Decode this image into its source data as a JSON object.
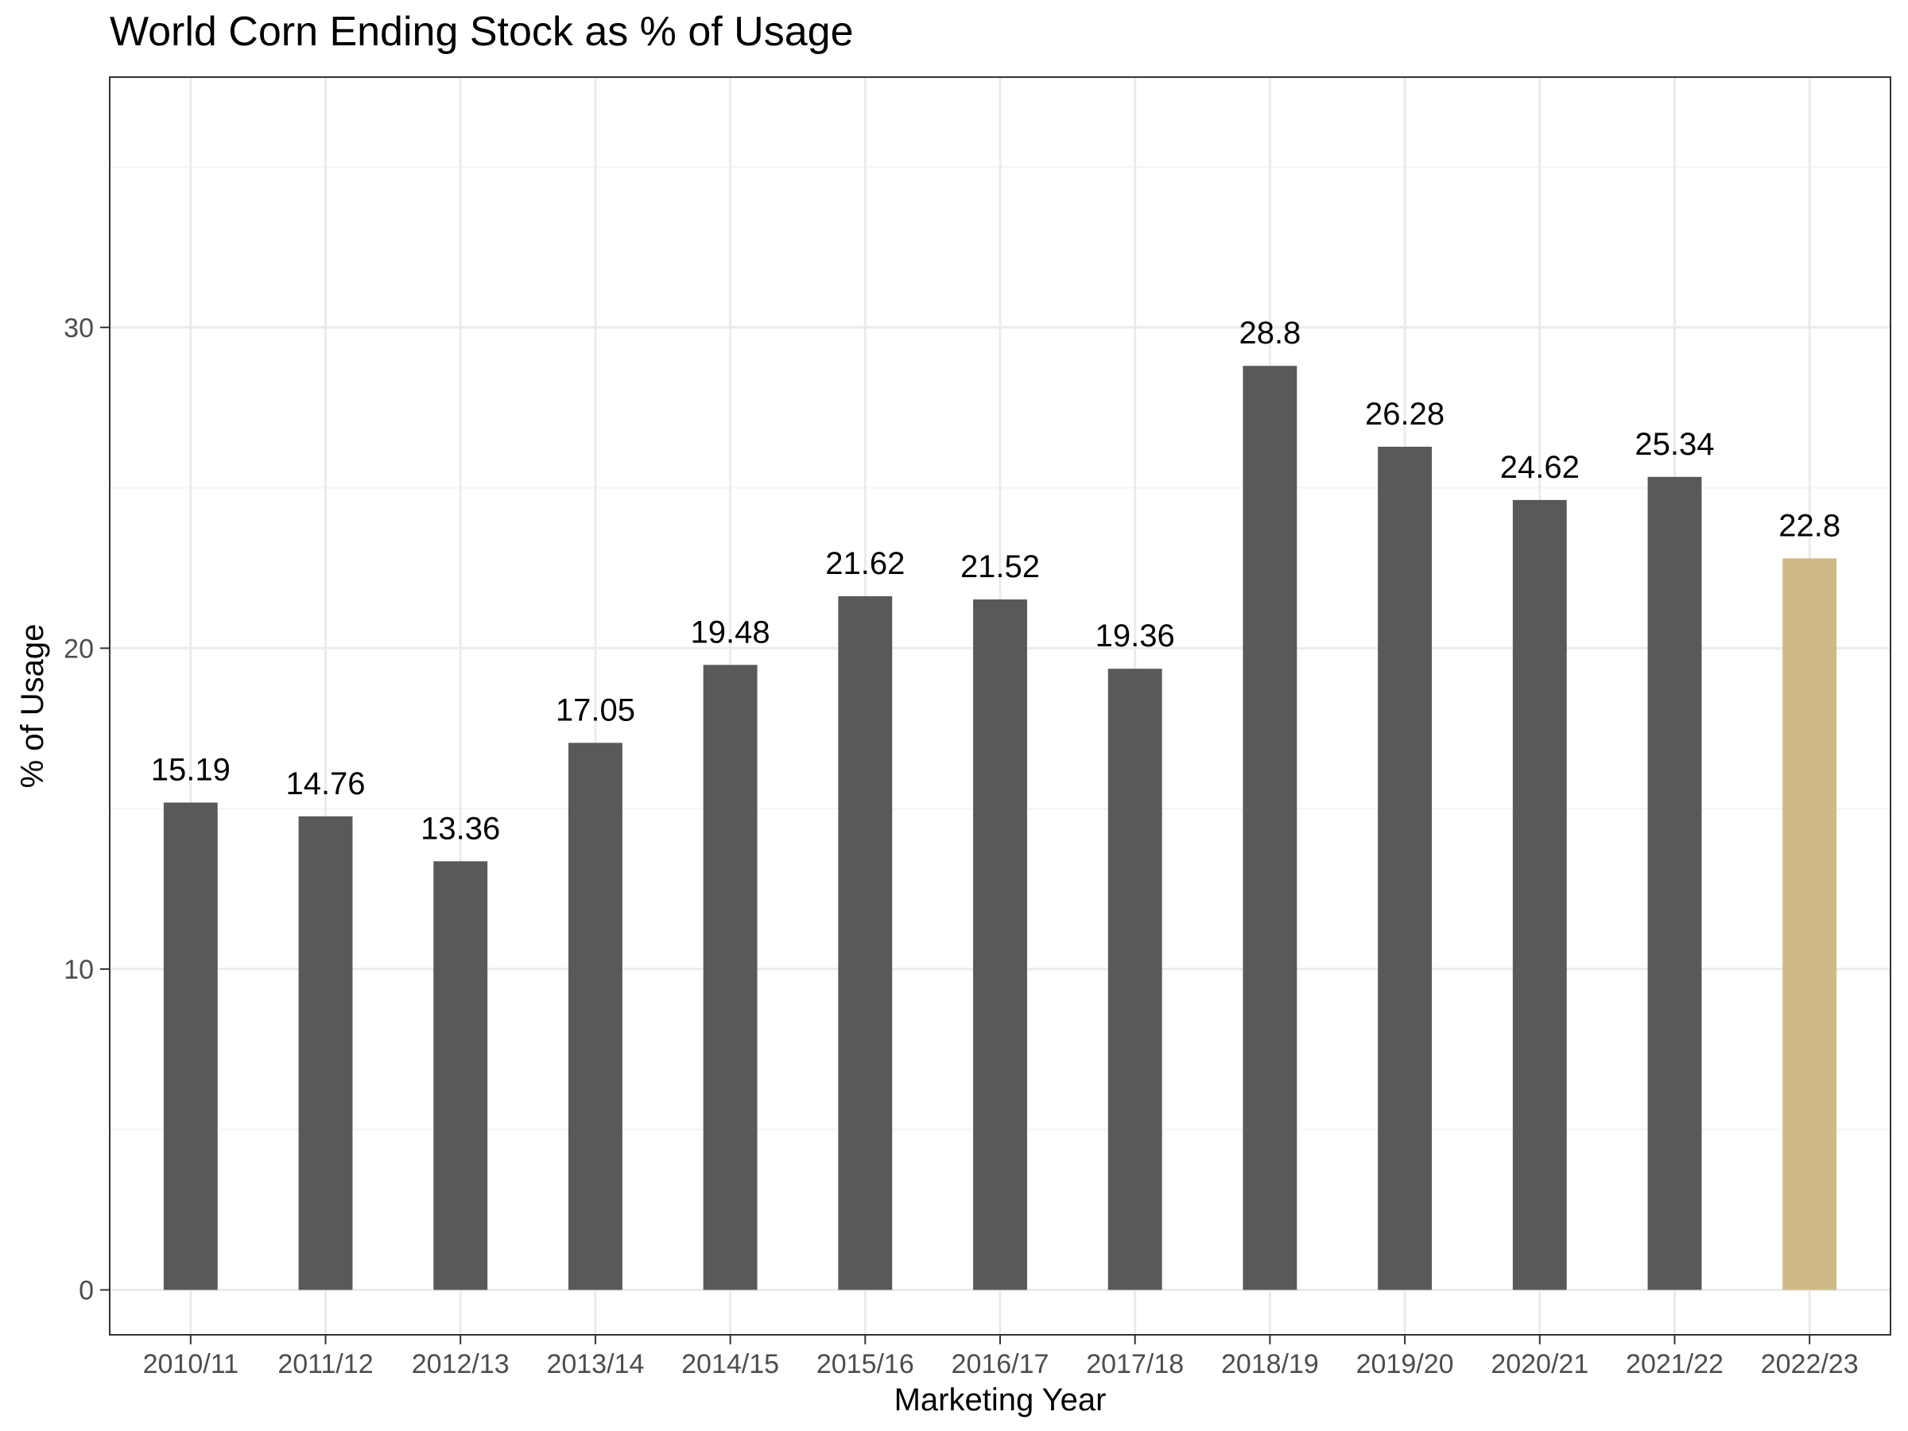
{
  "chart_data": {
    "type": "bar",
    "title": "World Corn Ending Stock as % of Usage",
    "xlabel": "Marketing Year",
    "ylabel": "% of Usage",
    "categories": [
      "2010/11",
      "2011/12",
      "2012/13",
      "2013/14",
      "2014/15",
      "2015/16",
      "2016/17",
      "2017/18",
      "2018/19",
      "2019/20",
      "2020/21",
      "2021/22",
      "2022/23"
    ],
    "values": [
      15.19,
      14.76,
      13.36,
      17.05,
      19.48,
      21.62,
      21.52,
      19.36,
      28.8,
      26.28,
      24.62,
      25.34,
      22.8
    ],
    "value_labels": [
      "15.19",
      "14.76",
      "13.36",
      "17.05",
      "19.48",
      "21.62",
      "21.52",
      "19.36",
      "28.8",
      "26.28",
      "24.62",
      "25.34",
      "22.8"
    ],
    "highlighted_category": "2022/23",
    "yticks": [
      0,
      10,
      20,
      30
    ],
    "ytick_labels": [
      "0",
      "10",
      "20",
      "30"
    ],
    "ylim": [
      -1.4,
      37.8
    ],
    "grid": true,
    "legend": "none"
  },
  "colors": {
    "bar": "#595959",
    "bar_highlight": "#CFB987",
    "grid_major": "#EBEBEB",
    "grid_minor": "#F4F4F4",
    "panel_border": "#333333",
    "tick_text": "#4D4D4D"
  }
}
